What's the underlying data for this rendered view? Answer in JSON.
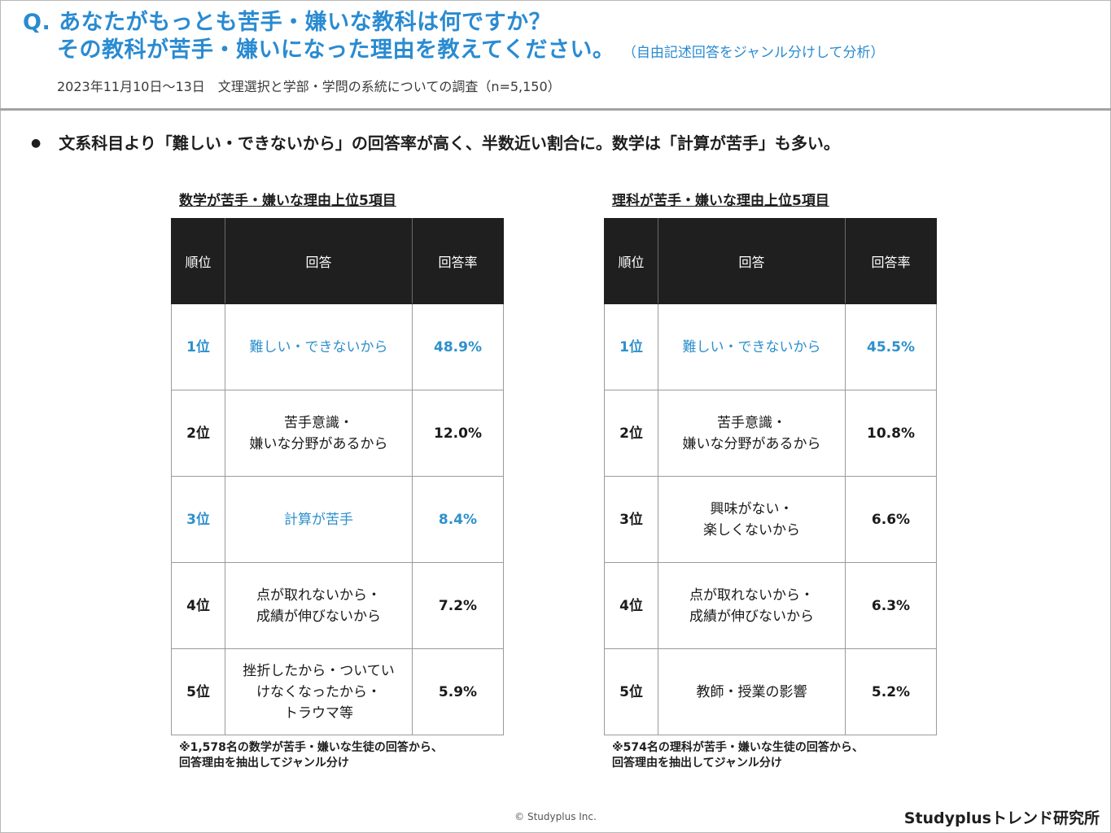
{
  "header": {
    "question_line1": "Q. あなたがもっとも苦手・嫌いな教科は何ですか？",
    "question_line2": "その教科が苦手・嫌いになった理由を教えてください。",
    "question_note": "（自由記述回答をジャンル分けして分析）",
    "survey": "2023年11月10日～13日　文理選択と学部・学問の系統についての調査（n=5,150）",
    "accent_color": "#2a8bd1"
  },
  "summary": {
    "bullet": "●",
    "text": "文系科目より「難しい・できないから」の回答率が高く、半数近い割合に。数学は「計算が苦手」も多い。"
  },
  "columns": [
    "順位",
    "回答",
    "回答率"
  ],
  "math": {
    "title": "数学が苦手・嫌いな理由上位5項目",
    "rows": [
      {
        "rank": "1位",
        "answer": "難しい・できないから",
        "rate": "48.9%"
      },
      {
        "rank": "2位",
        "answer": "苦手意識・\n嫌いな分野があるから",
        "rate": "12.0%"
      },
      {
        "rank": "3位",
        "answer": "計算が苦手",
        "rate": "8.4%"
      },
      {
        "rank": "4位",
        "answer": "点が取れないから・\n成績が伸びないから",
        "rate": "7.2%"
      },
      {
        "rank": "5位",
        "answer": "挫折したから・ついてい\nけなくなったから・\nトラウマ等",
        "rate": "5.9%"
      }
    ],
    "note_line1": "※1,578名の数学が苦手・嫌いな生徒の回答から、",
    "note_line2": "回答理由を抽出してジャンル分け"
  },
  "science": {
    "title": "理科が苦手・嫌いな理由上位5項目",
    "rows": [
      {
        "rank": "1位",
        "answer": "難しい・できないから",
        "rate": "45.5%"
      },
      {
        "rank": "2位",
        "answer": "苦手意識・\n嫌いな分野があるから",
        "rate": "10.8%"
      },
      {
        "rank": "3位",
        "answer": "興味がない・\n楽しくないから",
        "rate": "6.6%"
      },
      {
        "rank": "4位",
        "answer": "点が取れないから・\n成績が伸びないから",
        "rate": "6.3%"
      },
      {
        "rank": "5位",
        "answer": "教師・授業の影響",
        "rate": "5.2%"
      }
    ],
    "note_line1": "※574名の理科が苦手・嫌いな生徒の回答から、",
    "note_line2": "回答理由を抽出してジャンル分け"
  },
  "footer": {
    "copyright": "© Studyplus Inc.",
    "brand": "Studyplusトレンド研究所"
  }
}
